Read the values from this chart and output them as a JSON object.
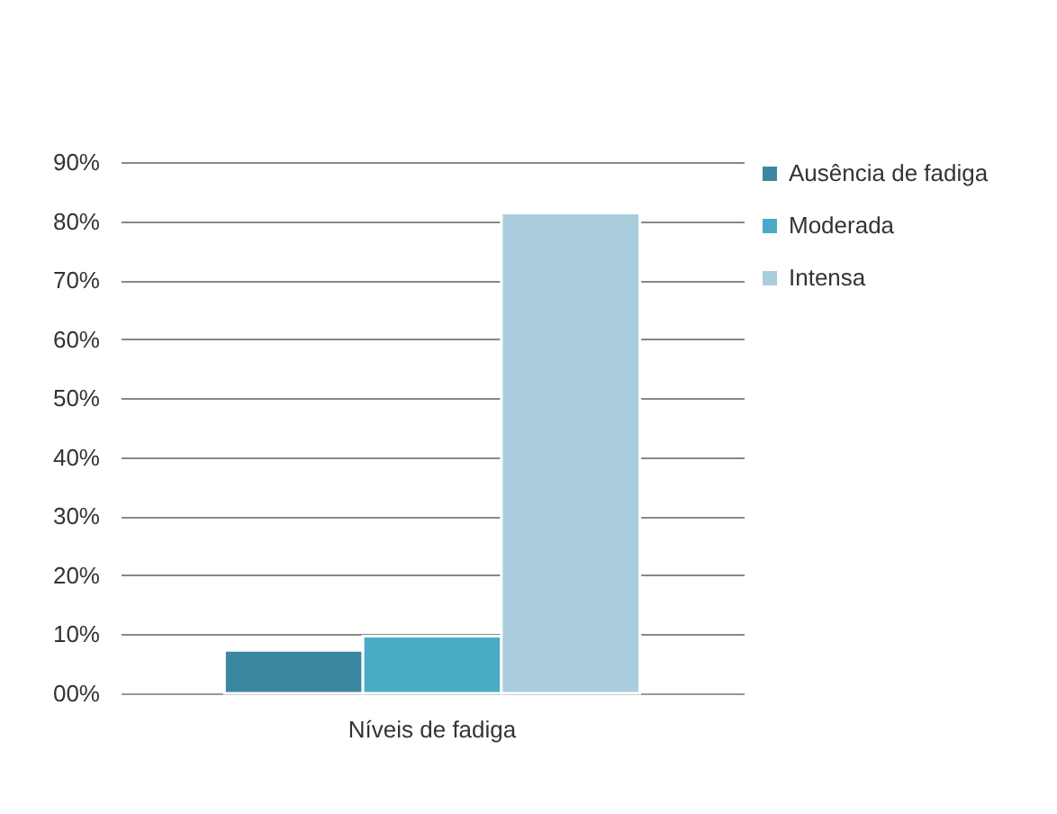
{
  "chart_data": {
    "type": "bar",
    "categories": [
      "Níveis de fadiga"
    ],
    "series": [
      {
        "name": "Ausência de fadiga",
        "color": "#3c87a0",
        "values": [
          7.3
        ]
      },
      {
        "name": "Moderada",
        "color": "#4aabc6",
        "values": [
          9.7
        ]
      },
      {
        "name": "Intensa",
        "color": "#a9cddc",
        "values": [
          81.4
        ]
      }
    ],
    "ylim": [
      0,
      90
    ],
    "yticks": [
      {
        "value": 0,
        "label": "00%"
      },
      {
        "value": 10,
        "label": "10%"
      },
      {
        "value": 20,
        "label": "20%"
      },
      {
        "value": 30,
        "label": "30%"
      },
      {
        "value": 40,
        "label": "40%"
      },
      {
        "value": 50,
        "label": "50%"
      },
      {
        "value": 60,
        "label": "60%"
      },
      {
        "value": 70,
        "label": "70%"
      },
      {
        "value": 80,
        "label": "80%"
      },
      {
        "value": 90,
        "label": "90%"
      }
    ],
    "grid": "y",
    "legend": "right"
  }
}
